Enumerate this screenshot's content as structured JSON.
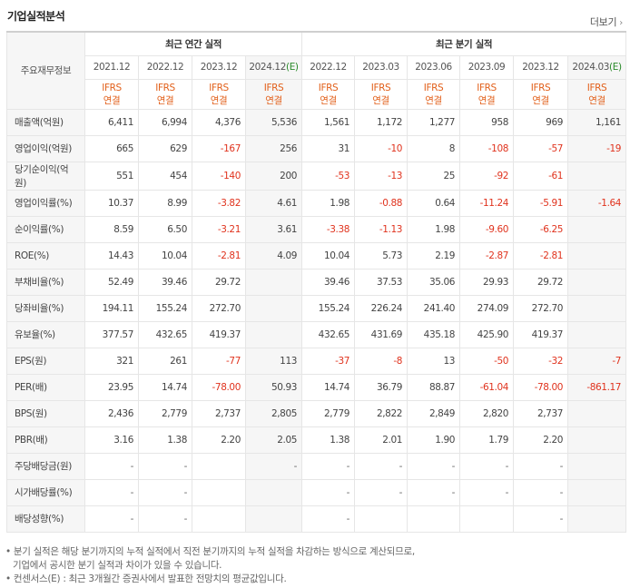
{
  "title": "기업실적분석",
  "more_label": "더보기",
  "header": {
    "corner_label": "주요재무정보",
    "annual_group": "최근 연간 실적",
    "quarter_group": "최근 분기 실적",
    "annual_periods": [
      "2021.12",
      "2022.12",
      "2023.12"
    ],
    "annual_estimate": {
      "period": "2024.12",
      "mark": "(E)"
    },
    "quarter_periods": [
      "2022.12",
      "2023.03",
      "2023.06",
      "2023.09",
      "2023.12"
    ],
    "quarter_estimate": {
      "period": "2024.03",
      "mark": "(E)"
    },
    "basis_line1": "IFRS",
    "basis_line2": "연결"
  },
  "rows": [
    {
      "label": "매출액(억원)",
      "values": [
        "6,411",
        "6,994",
        "4,376",
        "5,536",
        "1,561",
        "1,172",
        "1,277",
        "958",
        "969",
        "1,161"
      ]
    },
    {
      "label": "영업이익(억원)",
      "values": [
        "665",
        "629",
        "-167",
        "256",
        "31",
        "-10",
        "8",
        "-108",
        "-57",
        "-19"
      ]
    },
    {
      "label": "당기순이익(억원)",
      "values": [
        "551",
        "454",
        "-140",
        "200",
        "-53",
        "-13",
        "25",
        "-92",
        "-61",
        ""
      ]
    },
    {
      "label": "영업이익률(%)",
      "values": [
        "10.37",
        "8.99",
        "-3.82",
        "4.61",
        "1.98",
        "-0.88",
        "0.64",
        "-11.24",
        "-5.91",
        "-1.64"
      ]
    },
    {
      "label": "순이익률(%)",
      "values": [
        "8.59",
        "6.50",
        "-3.21",
        "3.61",
        "-3.38",
        "-1.13",
        "1.98",
        "-9.60",
        "-6.25",
        ""
      ]
    },
    {
      "label": "ROE(%)",
      "values": [
        "14.43",
        "10.04",
        "-2.81",
        "4.09",
        "10.04",
        "5.73",
        "2.19",
        "-2.87",
        "-2.81",
        ""
      ]
    },
    {
      "label": "부채비율(%)",
      "values": [
        "52.49",
        "39.46",
        "29.72",
        "",
        "39.46",
        "37.53",
        "35.06",
        "29.93",
        "29.72",
        ""
      ]
    },
    {
      "label": "당좌비율(%)",
      "values": [
        "194.11",
        "155.24",
        "272.70",
        "",
        "155.24",
        "226.24",
        "241.40",
        "274.09",
        "272.70",
        ""
      ]
    },
    {
      "label": "유보율(%)",
      "values": [
        "377.57",
        "432.65",
        "419.37",
        "",
        "432.65",
        "431.69",
        "435.18",
        "425.90",
        "419.37",
        ""
      ]
    },
    {
      "label": "EPS(원)",
      "values": [
        "321",
        "261",
        "-77",
        "113",
        "-37",
        "-8",
        "13",
        "-50",
        "-32",
        "-7"
      ]
    },
    {
      "label": "PER(배)",
      "values": [
        "23.95",
        "14.74",
        "-78.00",
        "50.93",
        "14.74",
        "36.79",
        "88.87",
        "-61.04",
        "-78.00",
        "-861.17"
      ]
    },
    {
      "label": "BPS(원)",
      "values": [
        "2,436",
        "2,779",
        "2,737",
        "2,805",
        "2,779",
        "2,822",
        "2,849",
        "2,820",
        "2,737",
        ""
      ]
    },
    {
      "label": "PBR(배)",
      "values": [
        "3.16",
        "1.38",
        "2.20",
        "2.05",
        "1.38",
        "2.01",
        "1.90",
        "1.79",
        "2.20",
        ""
      ]
    },
    {
      "label": "주당배당금(원)",
      "values": [
        "-",
        "-",
        "",
        "-",
        "-",
        "-",
        "-",
        "-",
        "-",
        ""
      ]
    },
    {
      "label": "시가배당률(%)",
      "values": [
        "-",
        "-",
        "",
        "",
        "-",
        "-",
        "-",
        "-",
        "-",
        ""
      ]
    },
    {
      "label": "배당성향(%)",
      "values": [
        "-",
        "-",
        "",
        "",
        "-",
        "",
        "",
        "",
        "-",
        ""
      ]
    }
  ],
  "notes": {
    "line1": "• 분기 실적은 해당 분기까지의 누적 실적에서 직전 분기까지의 누적 실적을 차감하는 방식으로 계산되므로,",
    "line2": "기업에서 공시한 분기 실적과 차이가 있을 수 있습니다.",
    "line3": "• 컨센서스(E) : 최근 3개월간 증권사에서 발표한 전망치의 평균값입니다."
  }
}
